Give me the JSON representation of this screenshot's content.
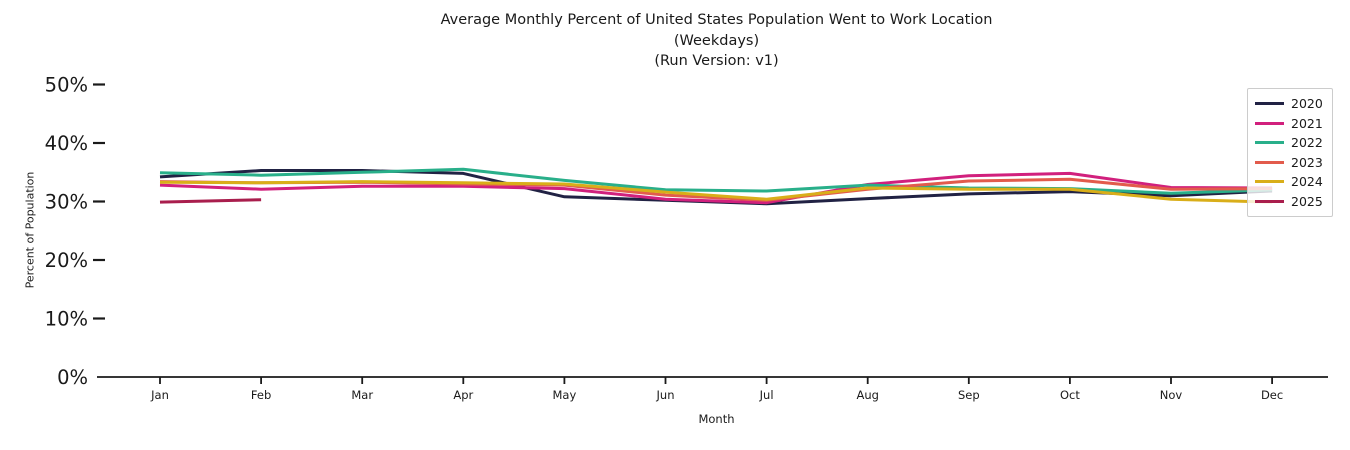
{
  "chart_data": {
    "type": "line",
    "title_lines": [
      "Average Monthly Percent of United States Population Went to Work Location",
      "(Weekdays)",
      "(Run Version: v1)"
    ],
    "xlabel": "Month",
    "ylabel": "Percent of Population",
    "categories": [
      "Jan",
      "Feb",
      "Mar",
      "Apr",
      "May",
      "Jun",
      "Jul",
      "Aug",
      "Sep",
      "Oct",
      "Nov",
      "Dec"
    ],
    "yticks": [
      0,
      10,
      20,
      30,
      40,
      50
    ],
    "ytick_labels": [
      "0%",
      "10%",
      "20%",
      "30%",
      "40%",
      "50%"
    ],
    "ylim": [
      0,
      50
    ],
    "grid": false,
    "legend_position": "upper right",
    "series": [
      {
        "name": "2020",
        "color": "#212244",
        "values": [
          34.2,
          35.3,
          35.3,
          34.8,
          30.8,
          30.2,
          29.6,
          30.5,
          31.3,
          31.7,
          31.0,
          31.8
        ]
      },
      {
        "name": "2021",
        "color": "#d1207d",
        "values": [
          32.8,
          32.1,
          32.6,
          32.6,
          32.2,
          30.4,
          29.8,
          32.9,
          34.4,
          34.8,
          32.4,
          32.3
        ]
      },
      {
        "name": "2022",
        "color": "#29af8a",
        "values": [
          34.9,
          34.5,
          35.0,
          35.5,
          33.6,
          32.0,
          31.8,
          32.8,
          32.3,
          32.2,
          31.4,
          32.0
        ]
      },
      {
        "name": "2023",
        "color": "#e25b4c",
        "values": [
          33.4,
          33.2,
          33.3,
          33.0,
          32.8,
          31.1,
          30.2,
          32.1,
          33.5,
          33.8,
          32.1,
          32.2
        ]
      },
      {
        "name": "2024",
        "color": "#d9ae19",
        "values": [
          33.3,
          33.2,
          33.4,
          33.2,
          33.0,
          31.6,
          30.4,
          32.3,
          32.1,
          32.1,
          30.4,
          29.9
        ]
      },
      {
        "name": "2025",
        "color": "#a91e4d",
        "values": [
          29.9,
          30.3,
          null,
          null,
          null,
          null,
          null,
          null,
          null,
          null,
          null,
          null
        ]
      }
    ]
  },
  "style": {
    "axis_color": "#1a1a1a",
    "legend_border_color": "#cccccc"
  }
}
